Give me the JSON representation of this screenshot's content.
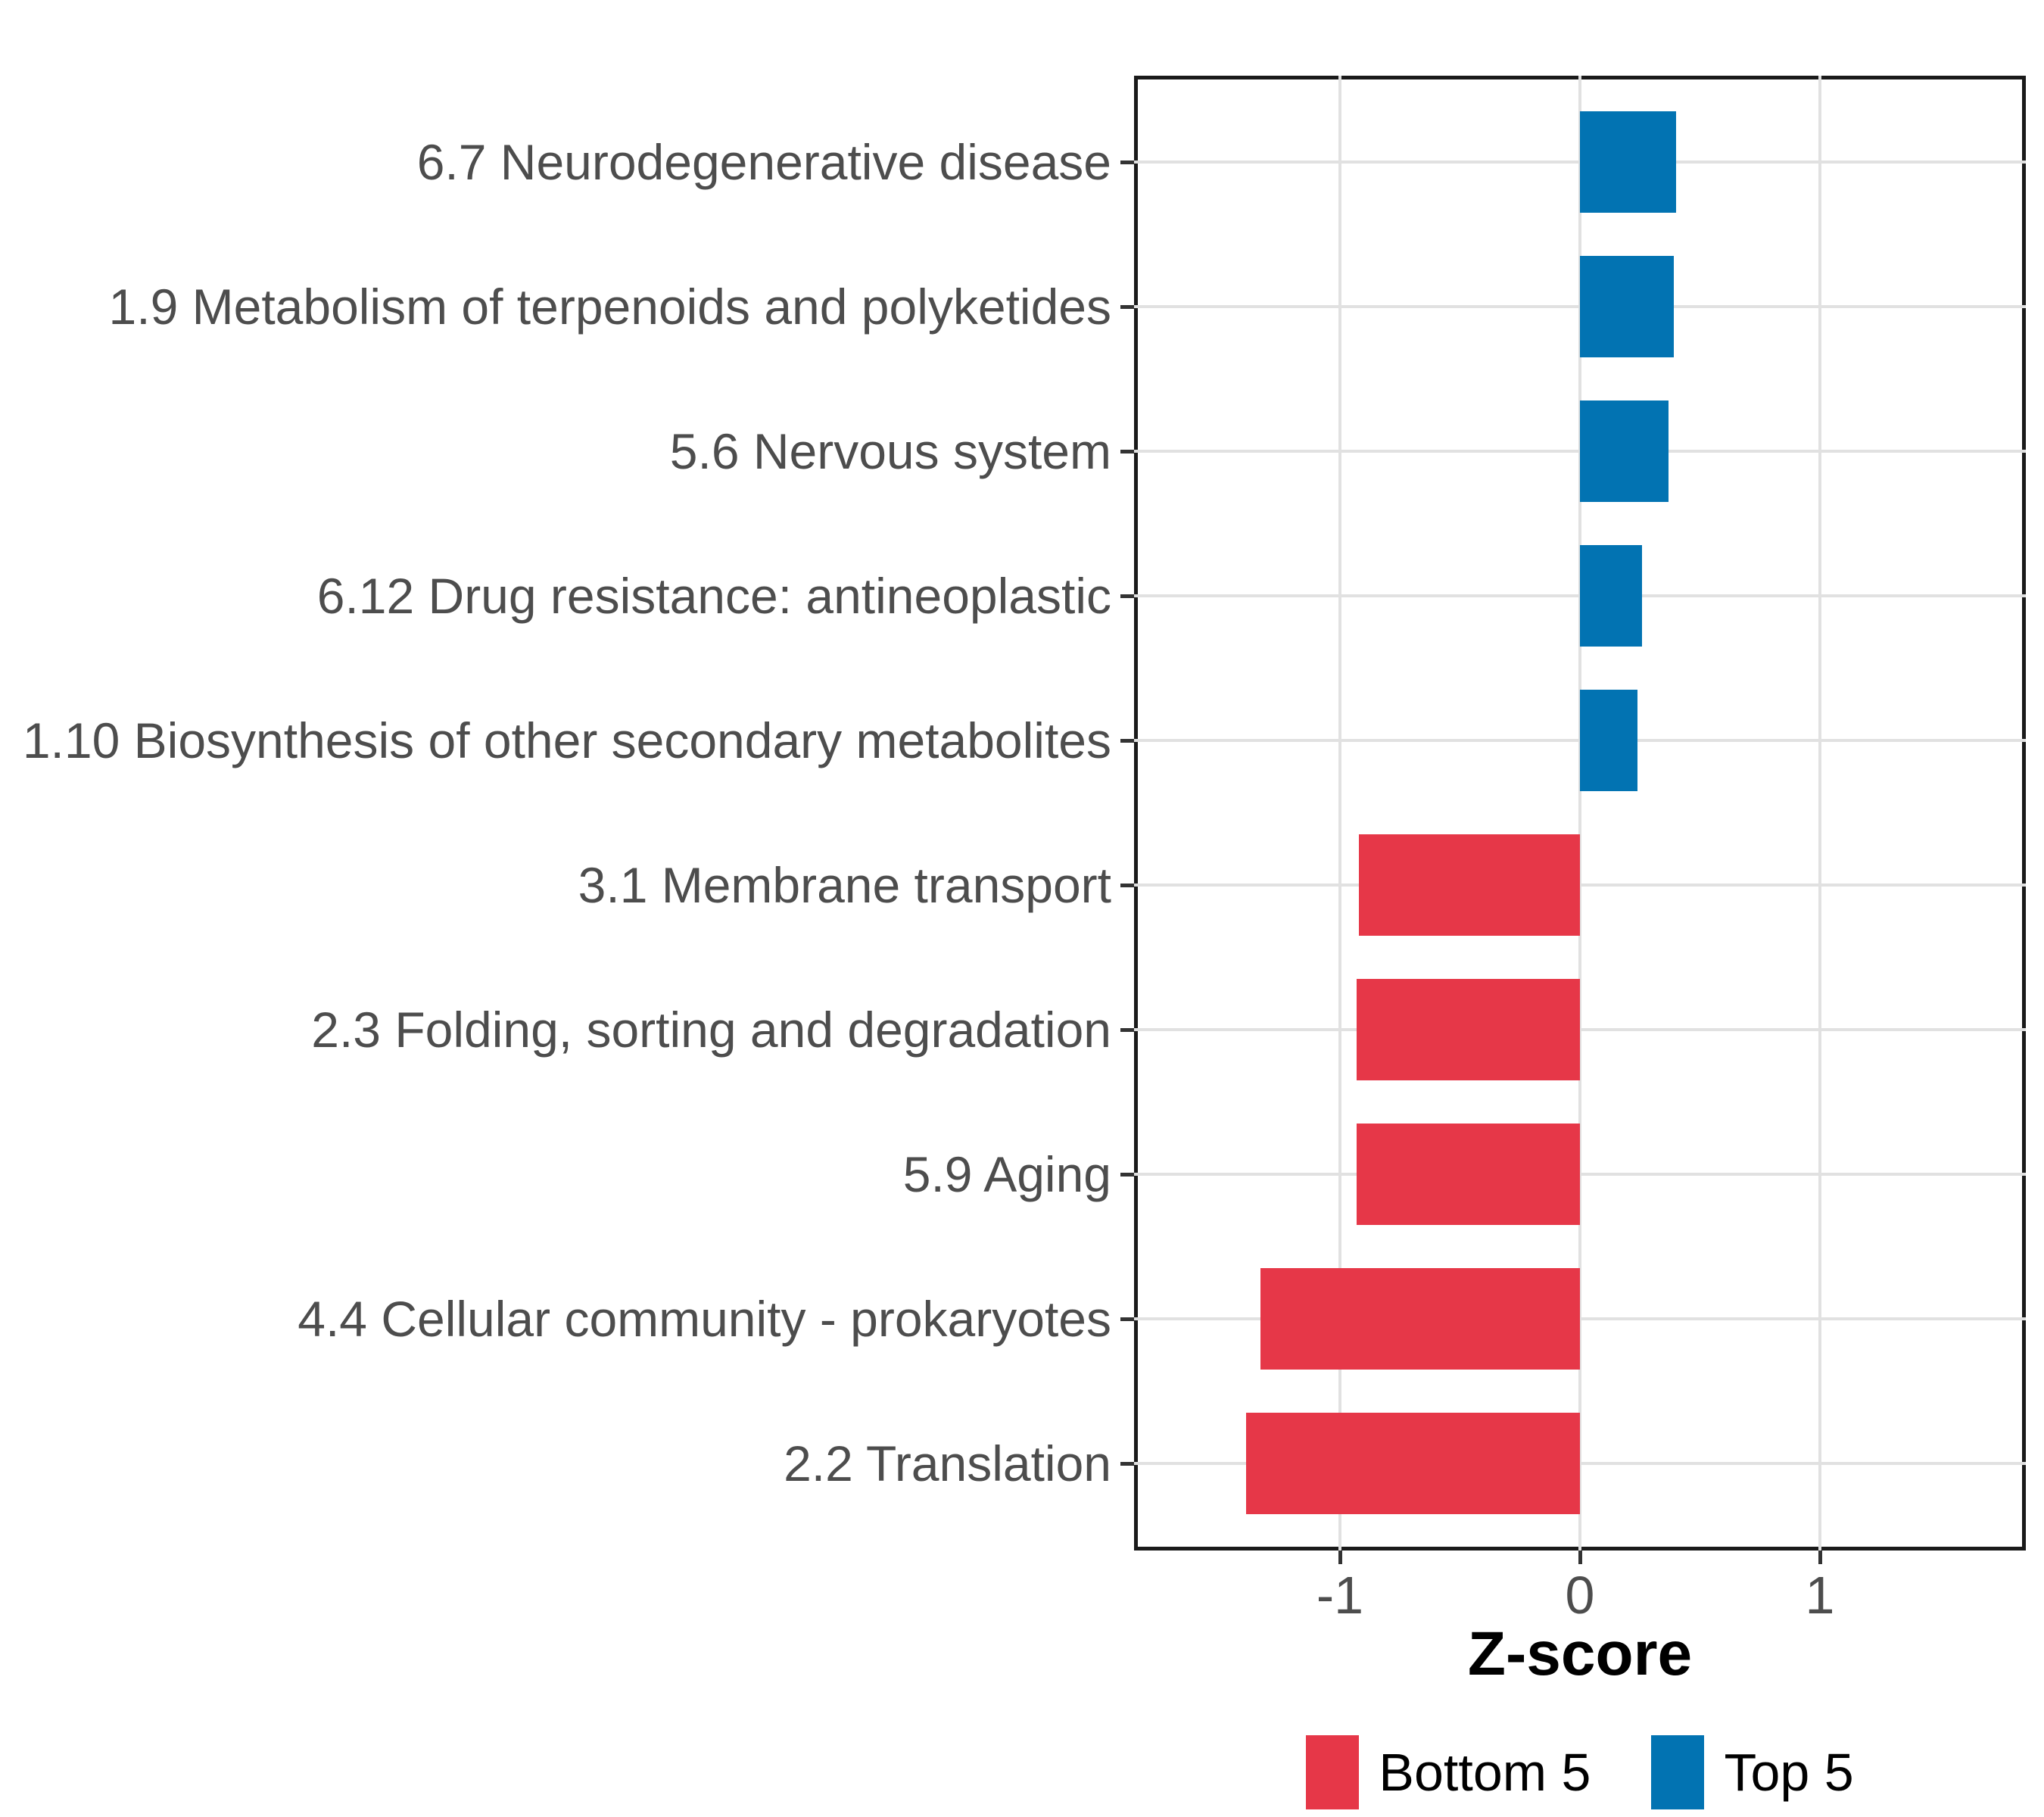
{
  "chart_data": {
    "type": "bar",
    "orientation": "horizontal",
    "xlabel": "Z-score",
    "categories": [
      "6.7 Neurodegenerative disease",
      "1.9 Metabolism of terpenoids and polyketides",
      "5.6 Nervous system",
      "6.12 Drug resistance: antineoplastic",
      "1.10 Biosynthesis of other secondary metabolites",
      "3.1 Membrane transport",
      "2.3 Folding, sorting and degradation",
      "5.9 Aging",
      "4.4 Cellular community - prokaryotes",
      "2.2 Translation"
    ],
    "values": [
      0.4,
      0.39,
      0.37,
      0.26,
      0.24,
      -0.92,
      -0.93,
      -0.93,
      -1.33,
      -1.39
    ],
    "groups": [
      "Top 5",
      "Top 5",
      "Top 5",
      "Top 5",
      "Top 5",
      "Bottom 5",
      "Bottom 5",
      "Bottom 5",
      "Bottom 5",
      "Bottom 5"
    ],
    "x_ticks": [
      "-1",
      "0",
      "1"
    ],
    "x_tick_values": [
      -1,
      0,
      1
    ],
    "xlim": [
      -1.86,
      1.86
    ],
    "grid": true,
    "legend_position": "bottom",
    "legend": [
      {
        "label": "Bottom 5",
        "color": "#E63748"
      },
      {
        "label": "Top 5",
        "color": "#0273B2"
      }
    ],
    "colors": {
      "top5": "#0273B2",
      "bottom5": "#E63748",
      "gridline": "#E1E1E1",
      "panel_border": "#1A1A1A",
      "axis_text": "#4D4D4D",
      "tick_mark": "#333333"
    }
  }
}
